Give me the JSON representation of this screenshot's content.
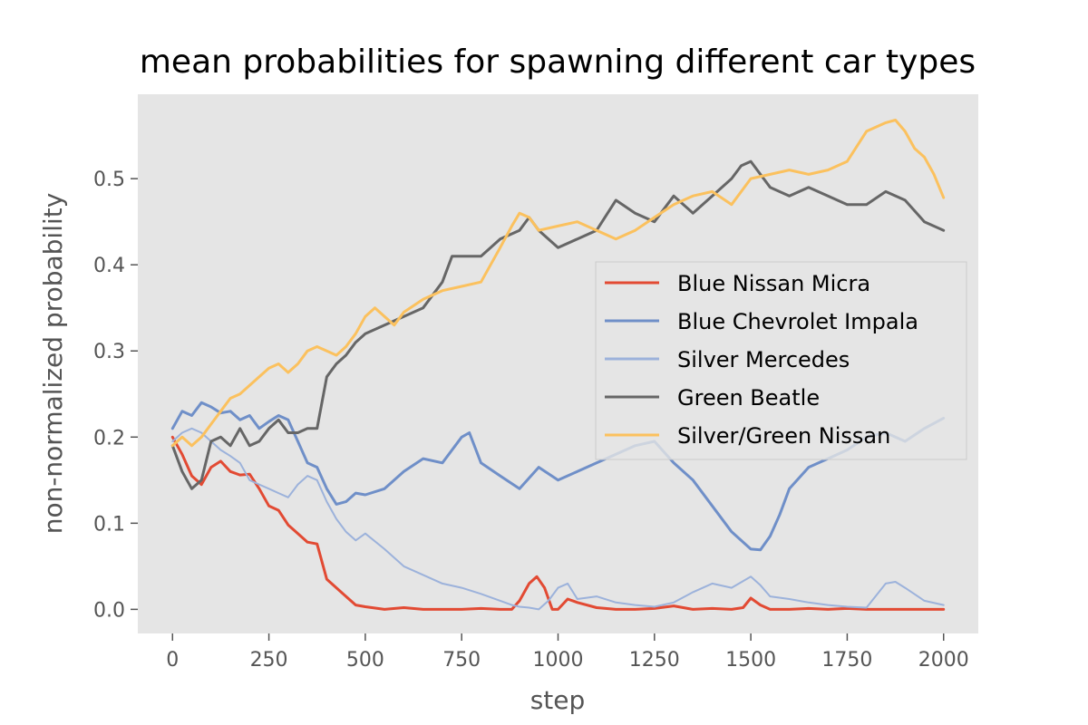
{
  "chart_data": {
    "type": "line",
    "title": "mean probabilities for spawning different car types",
    "xlabel": "step",
    "ylabel": "non-normalized probability",
    "xlim": [
      -90,
      2090
    ],
    "ylim": [
      -0.028,
      0.598
    ],
    "xticks": [
      0,
      250,
      500,
      750,
      1000,
      1250,
      1500,
      1750,
      2000
    ],
    "yticks": [
      0.0,
      0.1,
      0.2,
      0.3,
      0.4,
      0.5
    ],
    "ytick_labels": [
      "0.0",
      "0.1",
      "0.2",
      "0.3",
      "0.4",
      "0.5"
    ],
    "grid": false,
    "legend_position": "center-right",
    "background": "#e5e5e5",
    "series": [
      {
        "name": "Blue Nissan Micra",
        "color": "#e24a33",
        "width": 3,
        "x": [
          0,
          25,
          50,
          75,
          100,
          125,
          150,
          175,
          200,
          225,
          250,
          275,
          300,
          325,
          350,
          375,
          400,
          425,
          450,
          475,
          500,
          550,
          600,
          650,
          700,
          750,
          800,
          850,
          880,
          900,
          925,
          945,
          965,
          985,
          1000,
          1025,
          1050,
          1100,
          1150,
          1200,
          1250,
          1300,
          1350,
          1400,
          1450,
          1480,
          1500,
          1525,
          1550,
          1600,
          1650,
          1700,
          1750,
          1800,
          1850,
          1900,
          1950,
          2000
        ],
        "y": [
          0.2,
          0.18,
          0.155,
          0.145,
          0.165,
          0.172,
          0.16,
          0.156,
          0.157,
          0.14,
          0.12,
          0.115,
          0.098,
          0.088,
          0.078,
          0.076,
          0.035,
          0.025,
          0.015,
          0.005,
          0.003,
          0.0,
          0.002,
          0.0,
          0.0,
          0.0,
          0.001,
          0.0,
          0.0,
          0.01,
          0.03,
          0.038,
          0.025,
          0.0,
          0.0,
          0.012,
          0.008,
          0.002,
          0.0,
          0.0,
          0.001,
          0.004,
          0.0,
          0.001,
          0.0,
          0.002,
          0.013,
          0.005,
          0.0,
          0.0,
          0.001,
          0.0,
          0.001,
          0.0,
          0.0,
          0.0,
          0.0,
          0.0
        ]
      },
      {
        "name": "Blue Chevrolet Impala",
        "color": "#6f8fc8",
        "width": 3,
        "x": [
          0,
          25,
          50,
          75,
          100,
          125,
          150,
          175,
          200,
          225,
          250,
          275,
          300,
          325,
          350,
          375,
          400,
          425,
          450,
          475,
          500,
          550,
          600,
          650,
          700,
          750,
          770,
          800,
          850,
          900,
          950,
          1000,
          1050,
          1100,
          1150,
          1200,
          1250,
          1300,
          1350,
          1400,
          1450,
          1500,
          1525,
          1550,
          1575,
          1600,
          1650,
          1700,
          1750,
          1800,
          1850,
          1900,
          1950,
          2000
        ],
        "y": [
          0.21,
          0.23,
          0.225,
          0.24,
          0.235,
          0.228,
          0.23,
          0.22,
          0.225,
          0.21,
          0.218,
          0.225,
          0.22,
          0.195,
          0.17,
          0.165,
          0.14,
          0.122,
          0.125,
          0.135,
          0.133,
          0.14,
          0.16,
          0.175,
          0.17,
          0.2,
          0.205,
          0.17,
          0.155,
          0.14,
          0.165,
          0.15,
          0.16,
          0.17,
          0.18,
          0.19,
          0.195,
          0.17,
          0.15,
          0.12,
          0.09,
          0.07,
          0.069,
          0.085,
          0.11,
          0.14,
          0.165,
          0.175,
          0.185,
          0.2,
          0.205,
          0.195,
          0.21,
          0.222
        ]
      },
      {
        "name": "Silver Mercedes",
        "color": "#9cb2db",
        "width": 2,
        "x": [
          0,
          25,
          50,
          75,
          100,
          125,
          150,
          175,
          200,
          225,
          250,
          275,
          300,
          325,
          350,
          375,
          400,
          425,
          450,
          475,
          500,
          550,
          600,
          650,
          700,
          750,
          800,
          850,
          880,
          900,
          925,
          950,
          975,
          1000,
          1025,
          1050,
          1100,
          1150,
          1200,
          1250,
          1300,
          1350,
          1400,
          1450,
          1500,
          1525,
          1550,
          1600,
          1650,
          1700,
          1750,
          1800,
          1850,
          1875,
          1900,
          1950,
          2000
        ],
        "y": [
          0.195,
          0.205,
          0.21,
          0.205,
          0.195,
          0.185,
          0.178,
          0.17,
          0.15,
          0.145,
          0.14,
          0.135,
          0.13,
          0.145,
          0.155,
          0.15,
          0.125,
          0.105,
          0.09,
          0.08,
          0.088,
          0.07,
          0.05,
          0.04,
          0.03,
          0.025,
          0.018,
          0.01,
          0.005,
          0.003,
          0.002,
          0.0,
          0.01,
          0.025,
          0.03,
          0.012,
          0.015,
          0.008,
          0.005,
          0.003,
          0.008,
          0.02,
          0.03,
          0.025,
          0.038,
          0.028,
          0.015,
          0.012,
          0.008,
          0.005,
          0.003,
          0.002,
          0.03,
          0.032,
          0.025,
          0.01,
          0.005
        ]
      },
      {
        "name": "Green Beatle",
        "color": "#666666",
        "width": 3,
        "x": [
          0,
          25,
          50,
          75,
          100,
          125,
          150,
          175,
          200,
          225,
          250,
          275,
          300,
          325,
          350,
          375,
          400,
          425,
          450,
          475,
          500,
          550,
          600,
          650,
          700,
          725,
          750,
          800,
          850,
          900,
          925,
          950,
          1000,
          1050,
          1100,
          1150,
          1200,
          1250,
          1300,
          1350,
          1400,
          1450,
          1475,
          1500,
          1525,
          1550,
          1600,
          1650,
          1700,
          1750,
          1800,
          1850,
          1900,
          1950,
          2000
        ],
        "y": [
          0.19,
          0.16,
          0.14,
          0.15,
          0.195,
          0.2,
          0.19,
          0.21,
          0.19,
          0.195,
          0.21,
          0.22,
          0.205,
          0.205,
          0.21,
          0.21,
          0.27,
          0.285,
          0.295,
          0.31,
          0.32,
          0.33,
          0.34,
          0.35,
          0.38,
          0.41,
          0.41,
          0.41,
          0.43,
          0.44,
          0.455,
          0.44,
          0.42,
          0.43,
          0.44,
          0.475,
          0.46,
          0.45,
          0.48,
          0.46,
          0.48,
          0.5,
          0.515,
          0.52,
          0.505,
          0.49,
          0.48,
          0.49,
          0.48,
          0.47,
          0.47,
          0.485,
          0.475,
          0.45,
          0.44
        ]
      },
      {
        "name": "Silver/Green Nissan",
        "color": "#fbc15e",
        "width": 3,
        "x": [
          0,
          25,
          50,
          75,
          100,
          125,
          150,
          175,
          200,
          225,
          250,
          275,
          300,
          325,
          350,
          375,
          400,
          425,
          450,
          475,
          500,
          525,
          550,
          575,
          600,
          650,
          700,
          750,
          800,
          850,
          880,
          900,
          925,
          950,
          1000,
          1050,
          1100,
          1150,
          1200,
          1250,
          1300,
          1350,
          1400,
          1450,
          1500,
          1550,
          1600,
          1650,
          1700,
          1750,
          1800,
          1825,
          1850,
          1875,
          1900,
          1925,
          1950,
          1975,
          2000
        ],
        "y": [
          0.19,
          0.2,
          0.19,
          0.2,
          0.215,
          0.23,
          0.245,
          0.25,
          0.26,
          0.27,
          0.28,
          0.285,
          0.275,
          0.285,
          0.3,
          0.305,
          0.3,
          0.295,
          0.305,
          0.32,
          0.34,
          0.35,
          0.34,
          0.33,
          0.345,
          0.36,
          0.37,
          0.375,
          0.38,
          0.42,
          0.445,
          0.46,
          0.455,
          0.44,
          0.445,
          0.45,
          0.44,
          0.43,
          0.44,
          0.455,
          0.47,
          0.48,
          0.485,
          0.47,
          0.5,
          0.505,
          0.51,
          0.505,
          0.51,
          0.52,
          0.555,
          0.56,
          0.565,
          0.568,
          0.555,
          0.535,
          0.525,
          0.505,
          0.478
        ]
      }
    ]
  }
}
